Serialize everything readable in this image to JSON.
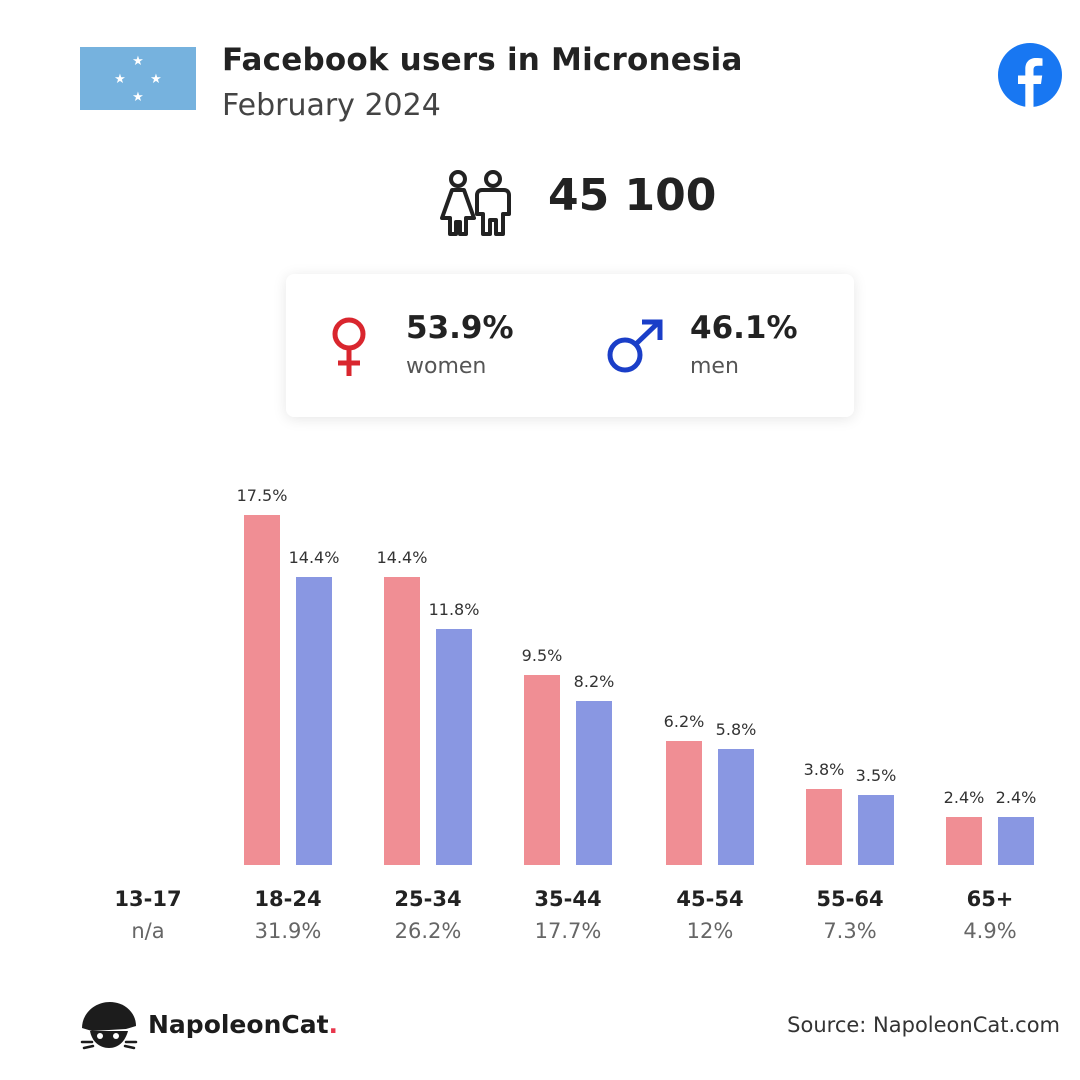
{
  "header": {
    "title": "Facebook users in Micronesia",
    "subtitle": "February 2024"
  },
  "total_users": "45 100",
  "gender": {
    "women": {
      "percent": "53.9%",
      "label": "women",
      "color": "#d9262e"
    },
    "men": {
      "percent": "46.1%",
      "label": "men",
      "color": "#1a3ec8"
    }
  },
  "colors": {
    "women_bar": "#f08e94",
    "men_bar": "#8997e2",
    "flag_blue": "#76b2de",
    "facebook_blue": "#1877f2"
  },
  "icons": [
    "micronesia-flag-icon",
    "facebook-logo-icon",
    "people-icon",
    "female-symbol-icon",
    "male-symbol-icon",
    "napoleoncat-logo-icon"
  ],
  "chart_data": {
    "type": "bar",
    "categories": [
      "13-17",
      "18-24",
      "25-34",
      "35-44",
      "45-54",
      "55-64",
      "65+"
    ],
    "category_totals": [
      "n/a",
      "31.9%",
      "26.2%",
      "17.7%",
      "12%",
      "7.3%",
      "4.9%"
    ],
    "series": [
      {
        "values": [
          null,
          17.5,
          14.4,
          9.5,
          6.2,
          3.8,
          2.4
        ],
        "labels": [
          "",
          "17.5%",
          "14.4%",
          "9.5%",
          "6.2%",
          "3.8%",
          "2.4%"
        ]
      },
      {
        "values": [
          null,
          14.4,
          11.8,
          8.2,
          5.8,
          3.5,
          2.4
        ],
        "labels": [
          "",
          "14.4%",
          "11.8%",
          "8.2%",
          "5.8%",
          "3.5%",
          "2.4%"
        ]
      }
    ],
    "ylim": [
      0,
      17.5
    ],
    "grid": false
  },
  "footer": {
    "brand": "NapoleonCat",
    "brand_dot": ".",
    "source": "Source: NapoleonCat.com"
  }
}
